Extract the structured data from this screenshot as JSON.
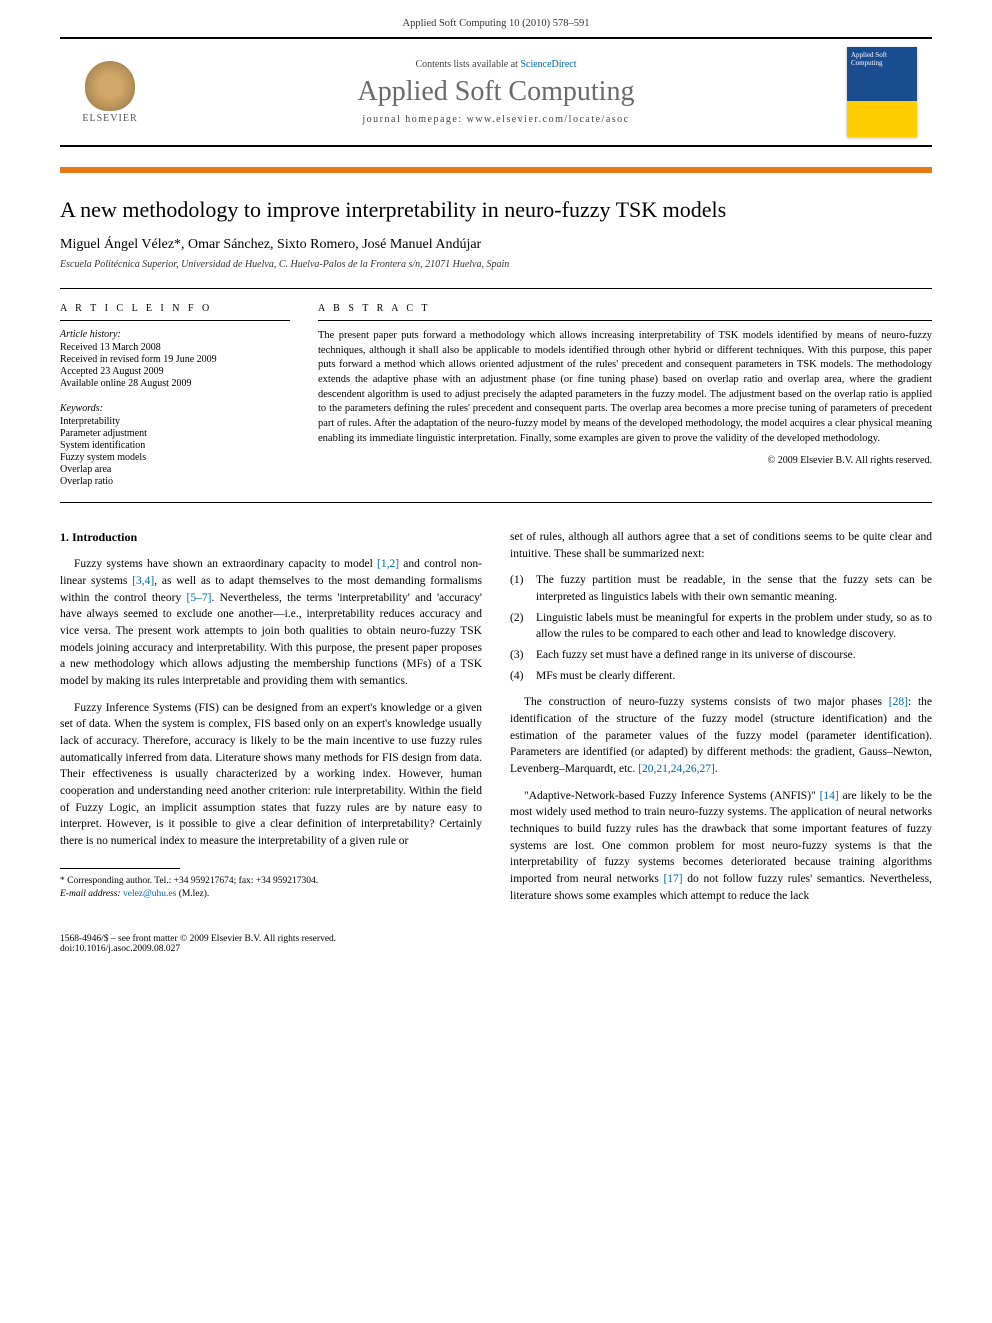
{
  "page_header": "Applied Soft Computing 10 (2010) 578–591",
  "banner": {
    "contents_prefix": "Contents lists available at ",
    "contents_link": "ScienceDirect",
    "journal_name": "Applied Soft Computing",
    "homepage_prefix": "journal homepage: ",
    "homepage_url": "www.elsevier.com/locate/asoc",
    "elsevier_label": "ELSEVIER",
    "cover_text": "Applied Soft Computing"
  },
  "title": "A new methodology to improve interpretability in neuro-fuzzy TSK models",
  "authors": "Miguel Ángel Vélez*, Omar Sánchez, Sixto Romero, José Manuel Andújar",
  "affiliation": "Escuela Politécnica Superior, Universidad de Huelva, C. Huelva-Palos de la Frontera s/n, 21071 Huelva, Spain",
  "article_info": {
    "heading": "A R T I C L E   I N F O",
    "history_label": "Article history:",
    "received": "Received 13 March 2008",
    "revised": "Received in revised form 19 June 2009",
    "accepted": "Accepted 23 August 2009",
    "online": "Available online 28 August 2009",
    "keywords_label": "Keywords:",
    "keywords": [
      "Interpretability",
      "Parameter adjustment",
      "System identification",
      "Fuzzy system models",
      "Overlap area",
      "Overlap ratio"
    ]
  },
  "abstract": {
    "heading": "A B S T R A C T",
    "text": "The present paper puts forward a methodology which allows increasing interpretability of TSK models identified by means of neuro-fuzzy techniques, although it shall also be applicable to models identified through other hybrid or different techniques. With this purpose, this paper puts forward a method which allows oriented adjustment of the rules' precedent and consequent parameters in TSK models. The methodology extends the adaptive phase with an adjustment phase (or fine tuning phase) based on overlap ratio and overlap area, where the gradient descendent algorithm is used to adjust precisely the adapted parameters in the fuzzy model. The adjustment based on the overlap ratio is applied to the parameters defining the rules' precedent and consequent parts. The overlap area becomes a more precise tuning of parameters of precedent part of rules. After the adaptation of the neuro-fuzzy model by means of the developed methodology, the model acquires a clear physical meaning enabling its immediate linguistic interpretation. Finally, some examples are given to prove the validity of the developed methodology.",
    "copyright": "© 2009 Elsevier B.V. All rights reserved."
  },
  "body": {
    "section1_heading": "1. Introduction",
    "left_para1_a": "Fuzzy systems have shown an extraordinary capacity to model ",
    "left_para1_ref1": "[1,2]",
    "left_para1_b": " and control non-linear systems ",
    "left_para1_ref2": "[3,4]",
    "left_para1_c": ", as well as to adapt themselves to the most demanding formalisms within the control theory ",
    "left_para1_ref3": "[5–7]",
    "left_para1_d": ". Nevertheless, the terms 'interpretability' and 'accuracy' have always seemed to exclude one another—i.e., interpretability reduces accuracy and vice versa. The present work attempts to join both qualities to obtain neuro-fuzzy TSK models joining accuracy and interpretability. With this purpose, the present paper proposes a new methodology which allows adjusting the membership functions (MFs) of a TSK model by making its rules interpretable and providing them with semantics.",
    "left_para2": "Fuzzy Inference Systems (FIS) can be designed from an expert's knowledge or a given set of data. When the system is complex, FIS based only on an expert's knowledge usually lack of accuracy. Therefore, accuracy is likely to be the main incentive to use fuzzy rules automatically inferred from data. Literature shows many methods for FIS design from data. Their effectiveness is usually characterized by a working index. However, human cooperation and understanding need another criterion: rule interpretability. Within the field of Fuzzy Logic, an implicit assumption states that fuzzy rules are by nature easy to interpret. However, is it possible to give a clear definition of interpretability? Certainly there is no numerical index to measure the interpretability of a given rule or",
    "right_para1": "set of rules, although all authors agree that a set of conditions seems to be quite clear and intuitive. These shall be summarized next:",
    "list": [
      {
        "num": "(1)",
        "text": "The fuzzy partition must be readable, in the sense that the fuzzy sets can be interpreted as linguistics labels with their own semantic meaning."
      },
      {
        "num": "(2)",
        "text": "Linguistic labels must be meaningful for experts in the problem under study, so as to allow the rules to be compared to each other and lead to knowledge discovery."
      },
      {
        "num": "(3)",
        "text": "Each fuzzy set must have a defined range in its universe of discourse."
      },
      {
        "num": "(4)",
        "text": "MFs must be clearly different."
      }
    ],
    "right_para2_a": "The construction of neuro-fuzzy systems consists of two major phases ",
    "right_para2_ref1": "[28]",
    "right_para2_b": ": the identification of the structure of the fuzzy model (structure identification) and the estimation of the parameter values of the fuzzy model (parameter identification). Parameters are identified (or adapted) by different methods: the gradient, Gauss–Newton, Levenberg–Marquardt, etc. ",
    "right_para2_ref2": "[20,21,24,26,27]",
    "right_para2_c": ".",
    "right_para3_a": "\"Adaptive-Network-based Fuzzy Inference Systems (ANFIS)\" ",
    "right_para3_ref1": "[14]",
    "right_para3_b": " are likely to be the most widely used method to train neuro-fuzzy systems. The application of neural networks techniques to build fuzzy rules has the drawback that some important features of fuzzy systems are lost. One common problem for most neuro-fuzzy systems is that the interpretability of fuzzy systems becomes deteriorated because training algorithms imported from neural networks ",
    "right_para3_ref2": "[17]",
    "right_para3_c": " do not follow fuzzy rules' semantics. Nevertheless, literature shows some examples which attempt to reduce the lack"
  },
  "footnote": {
    "corresponding": "* Corresponding author. Tel.: +34 959217674; fax: +34 959217304.",
    "email_label": "E-mail address: ",
    "email": "velez@uhu.es",
    "email_suffix": " (M.lez)."
  },
  "footer": {
    "front_matter": "1568-4946/$ – see front matter © 2009 Elsevier B.V. All rights reserved.",
    "doi": "doi:10.1016/j.asoc.2009.08.027"
  },
  "colors": {
    "orange_bar": "#e67817",
    "link": "#0066aa",
    "journal_gray": "#6a6a6a"
  }
}
